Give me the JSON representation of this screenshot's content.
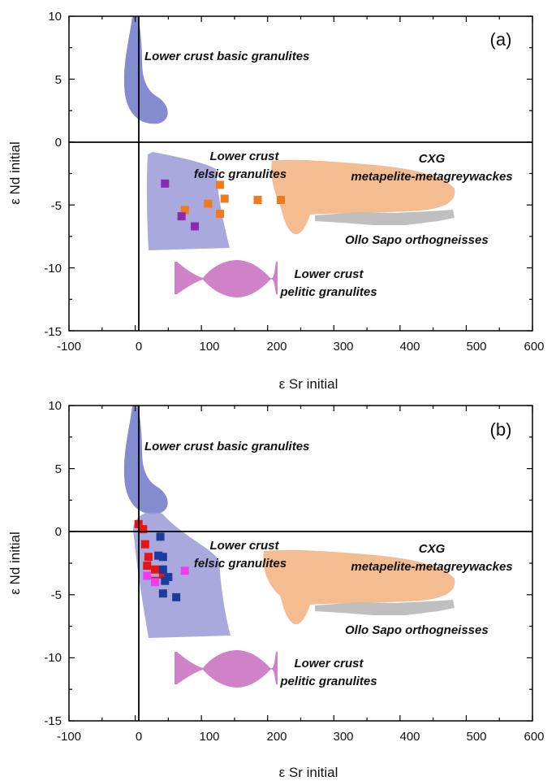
{
  "figure": {
    "x_axis_label": "ε Sr initial",
    "y_axis_label": "ε Nd initial"
  },
  "colors": {
    "basic_granulites": "#6f78c8",
    "felsic_granulites": "#9a9ad8",
    "pelitic_granulites": "#c86cc0",
    "cxg": "#f2b07e",
    "ollo_sapo": "#b4b4b4",
    "orange_squares": "#f07b1c",
    "purple_squares": "#8c28b4",
    "red_squares": "#e81414",
    "blue_squares": "#1c3c9c",
    "magenta_squares": "#ee3cee"
  },
  "chart_data": [
    {
      "type": "scatter",
      "panel": "(a)",
      "xlim": [
        -100,
        600
      ],
      "ylim": [
        -15,
        10
      ],
      "x_ticks": [
        "-100",
        "0",
        "100",
        "200",
        "300",
        "400",
        "500",
        "600"
      ],
      "y_ticks": [
        "10",
        "5",
        "0",
        "-5",
        "-10",
        "-15"
      ],
      "reference_lines": {
        "x": 0,
        "y": 0
      },
      "fields": [
        {
          "label": "Lower crust basic granulites",
          "color_key": "basic_granulites"
        },
        {
          "label": "Lower crust felsic granulites",
          "color_key": "felsic_granulites"
        },
        {
          "label": "CXG metapelite-metagreywackes",
          "color_key": "cxg"
        },
        {
          "label": "Ollo Sapo orthogneisses",
          "color_key": "ollo_sapo"
        },
        {
          "label": "Lower crust pelitic granulites",
          "color_key": "pelitic_granulites"
        }
      ],
      "series": [
        {
          "color_key": "orange_squares",
          "points": [
            [
              75,
              -5.4
            ],
            [
              110,
              -4.9
            ],
            [
              128,
              -3.4
            ],
            [
              135,
              -4.5
            ],
            [
              128,
              -5.7
            ],
            [
              185,
              -4.6
            ],
            [
              220,
              -4.6
            ]
          ]
        },
        {
          "color_key": "purple_squares",
          "points": [
            [
              45,
              -3.3
            ],
            [
              70,
              -5.9
            ],
            [
              90,
              -6.7
            ]
          ]
        }
      ]
    },
    {
      "type": "scatter",
      "panel": "(b)",
      "xlim": [
        -100,
        600
      ],
      "ylim": [
        -15,
        10
      ],
      "x_ticks": [
        "-100",
        "0",
        "100",
        "200",
        "300",
        "400",
        "500",
        "600"
      ],
      "y_ticks": [
        "10",
        "5",
        "0",
        "-5",
        "-10",
        "-15"
      ],
      "reference_lines": {
        "x": 0,
        "y": 0
      },
      "fields": [
        {
          "label": "Lower crust basic granulites",
          "color_key": "basic_granulites"
        },
        {
          "label": "Lower crust felsic granulites",
          "color_key": "felsic_granulites"
        },
        {
          "label": "CXG metapelite-metagreywackes",
          "color_key": "cxg"
        },
        {
          "label": "Ollo Sapo orthogneisses",
          "color_key": "ollo_sapo"
        },
        {
          "label": "Lower crust pelitic granulites",
          "color_key": "pelitic_granulites"
        }
      ],
      "series": [
        {
          "color_key": "red_squares",
          "points": [
            [
              5,
              0.6
            ],
            [
              12,
              0.2
            ],
            [
              15,
              -1.0
            ],
            [
              20,
              -2.0
            ],
            [
              18,
              -2.7
            ],
            [
              30,
              -3.0
            ],
            [
              42,
              -3.4
            ],
            [
              30,
              -3.9
            ]
          ]
        },
        {
          "color_key": "blue_squares",
          "points": [
            [
              38,
              -0.4
            ],
            [
              35,
              -1.9
            ],
            [
              42,
              -2.0
            ],
            [
              42,
              -3.0
            ],
            [
              50,
              -3.6
            ],
            [
              42,
              -4.9
            ],
            [
              62,
              -5.2
            ],
            [
              45,
              -3.9
            ]
          ]
        },
        {
          "color_key": "magenta_squares",
          "points": [
            [
              18,
              -3.5
            ],
            [
              30,
              -4.0
            ],
            [
              75,
              -3.1
            ]
          ]
        }
      ]
    }
  ]
}
